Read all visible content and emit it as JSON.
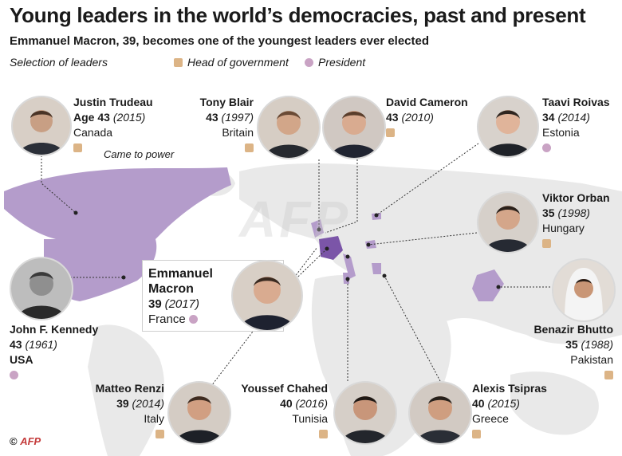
{
  "title": "Young leaders in the world’s democracies, past and present",
  "subtitle": "Emmanuel Macron, 39, becomes one of the youngest leaders ever elected",
  "legend": {
    "selection": "Selection of leaders",
    "head_of_government": "Head of government",
    "president": "President"
  },
  "annotation": "Came to power",
  "colors": {
    "head_of_government": "#dcb486",
    "president": "#c9a3c4",
    "highlight_country": "#7b55a8",
    "country": "#b49ccb",
    "land": "#e8e8e8"
  },
  "leaders": {
    "trudeau": {
      "name": "Justin Trudeau",
      "age_prefix": "Age",
      "age": "43",
      "year": "(2015)",
      "country": "Canada",
      "role": "head_of_government"
    },
    "blair": {
      "name": "Tony Blair",
      "age": "43",
      "year": "(1997)",
      "country": "Britain",
      "role": "head_of_government"
    },
    "cameron": {
      "name": "David Cameron",
      "age": "43",
      "year": "(2010)",
      "country": "",
      "role": "head_of_government"
    },
    "roivas": {
      "name": "Taavi Roivas",
      "age": "34",
      "year": "(2014)",
      "country": "Estonia",
      "role": "head_of_government"
    },
    "orban": {
      "name": "Viktor Orban",
      "age": "35",
      "year": "(1998)",
      "country": "Hungary",
      "role": "head_of_government"
    },
    "kennedy": {
      "name": "John F. Kennedy",
      "age": "43",
      "year": "(1961)",
      "country": "USA",
      "role": "president"
    },
    "macron": {
      "name_line1": "Emmanuel",
      "name_line2": "Macron",
      "age": "39",
      "year": "(2017)",
      "country": "France",
      "role": "president"
    },
    "bhutto": {
      "name": "Benazir Bhutto",
      "age": "35",
      "year": "(1988)",
      "country": "Pakistan",
      "role": "head_of_government"
    },
    "renzi": {
      "name": "Matteo Renzi",
      "age": "39",
      "year": "(2014)",
      "country": "Italy",
      "role": "head_of_government"
    },
    "chahed": {
      "name": "Youssef Chahed",
      "age": "40",
      "year": "(2016)",
      "country": "Tunisia",
      "role": "head_of_government"
    },
    "tsipras": {
      "name": "Alexis Tsipras",
      "age": "40",
      "year": "(2015)",
      "country": "Greece",
      "role": "head_of_government"
    }
  },
  "credit": {
    "symbol": "©",
    "agency": "AFP"
  },
  "watermark": "AFP"
}
